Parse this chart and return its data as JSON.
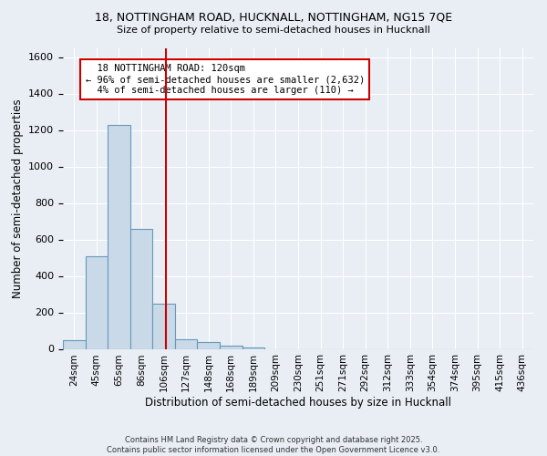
{
  "title_line1": "18, NOTTINGHAM ROAD, HUCKNALL, NOTTINGHAM, NG15 7QE",
  "title_line2": "Size of property relative to semi-detached houses in Hucknall",
  "xlabel": "Distribution of semi-detached houses by size in Hucknall",
  "ylabel": "Number of semi-detached properties",
  "categories": [
    "24sqm",
    "45sqm",
    "65sqm",
    "86sqm",
    "106sqm",
    "127sqm",
    "148sqm",
    "168sqm",
    "189sqm",
    "209sqm",
    "230sqm",
    "251sqm",
    "271sqm",
    "292sqm",
    "312sqm",
    "333sqm",
    "354sqm",
    "374sqm",
    "395sqm",
    "415sqm",
    "436sqm"
  ],
  "values": [
    50,
    510,
    1230,
    660,
    250,
    55,
    40,
    20,
    10,
    0,
    0,
    0,
    0,
    0,
    0,
    0,
    0,
    0,
    0,
    0,
    0
  ],
  "bar_color": "#c9d9e8",
  "bar_edge_color": "#6699bb",
  "ylim": [
    0,
    1650
  ],
  "yticks": [
    0,
    200,
    400,
    600,
    800,
    1000,
    1200,
    1400,
    1600
  ],
  "property_label": "18 NOTTINGHAM ROAD: 120sqm",
  "pct_smaller": 96,
  "pct_smaller_count": 2632,
  "pct_larger": 4,
  "pct_larger_count": 110,
  "vline_color": "#cc0000",
  "annotation_box_color": "#cc0000",
  "background_color": "#e8eef4",
  "grid_color": "#ffffff",
  "footer_text": "Contains HM Land Registry data © Crown copyright and database right 2025.\nContains public sector information licensed under the Open Government Licence v3.0.",
  "vline_x_index": 4.1
}
